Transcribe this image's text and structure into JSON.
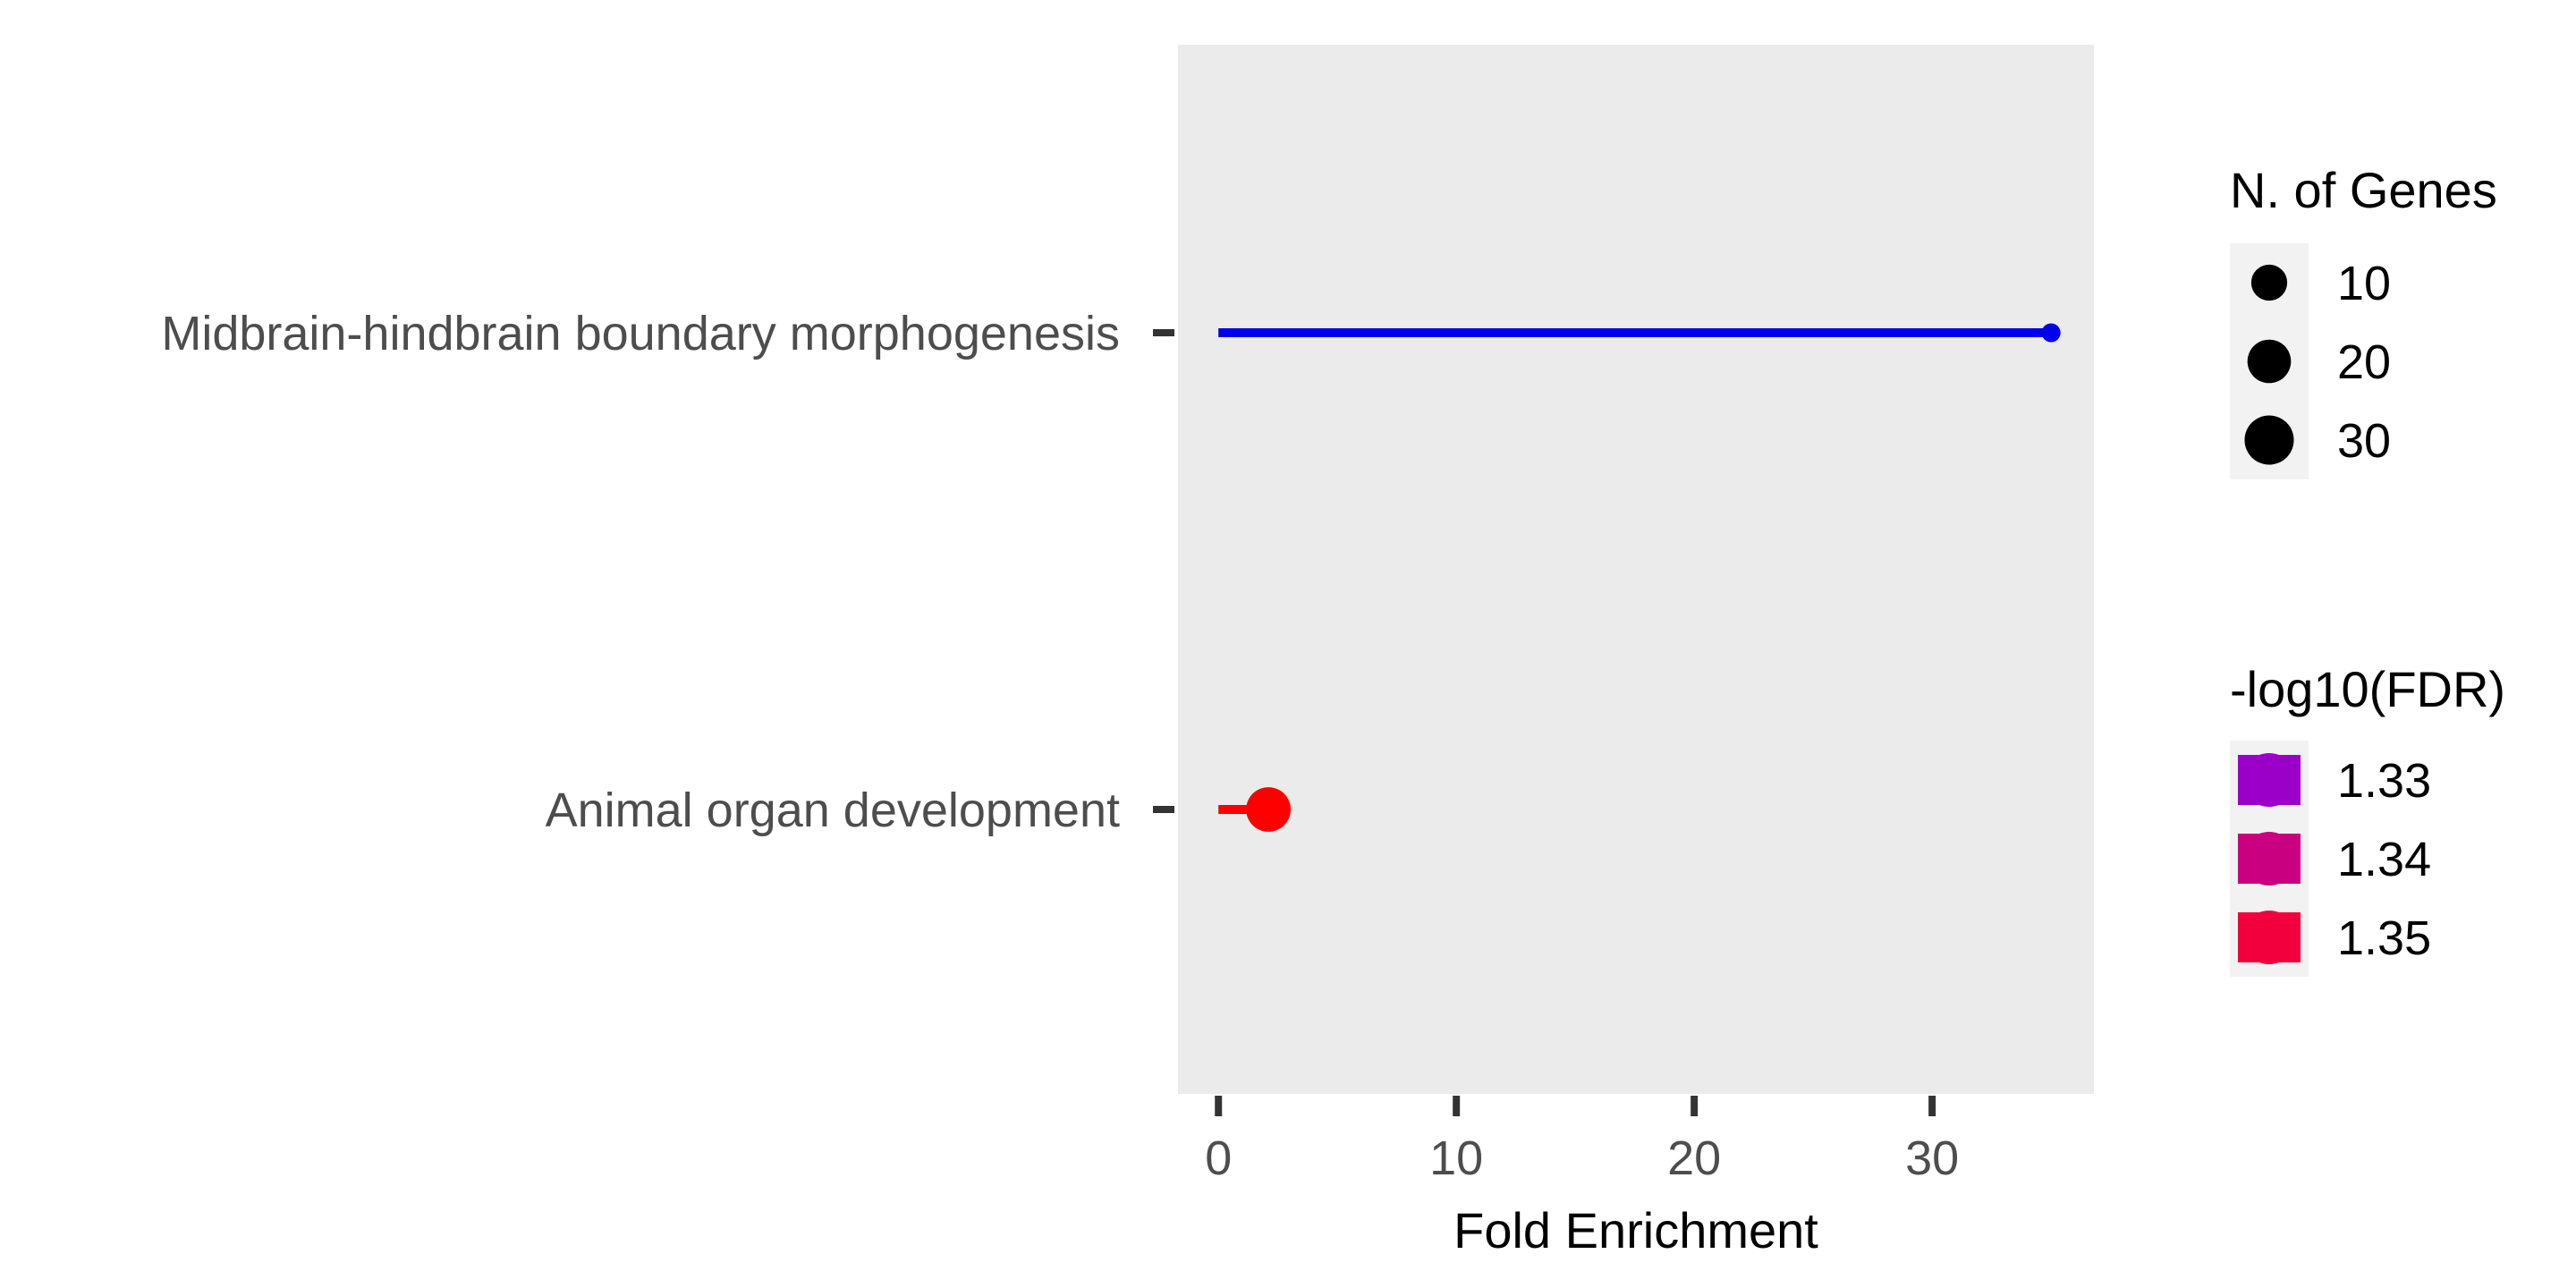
{
  "chart_data": {
    "type": "lollipop",
    "xlabel": "Fold Enrichment",
    "xlim": [
      -1.7,
      36.8
    ],
    "xticks": [
      0,
      10,
      20,
      30
    ],
    "grid": false,
    "legend_position": "right",
    "categories": [
      "Midbrain-hindbrain boundary morphogenesis",
      "Animal organ development"
    ],
    "points": [
      {
        "category": "Midbrain-hindbrain boundary morphogenesis",
        "fold_enrichment": 35,
        "n_genes": 2,
        "neg_log10_fdr": 1.33,
        "color": "#0000ee"
      },
      {
        "category": "Animal organ development",
        "fold_enrichment": 2.1,
        "n_genes": 35,
        "neg_log10_fdr": 1.35,
        "color": "#ff0000"
      }
    ],
    "size_legend": {
      "title": "N. of Genes",
      "items": [
        {
          "label": "10",
          "value": 10
        },
        {
          "label": "20",
          "value": 20
        },
        {
          "label": "30",
          "value": 30
        }
      ]
    },
    "color_legend": {
      "title": "-log10(FDR)",
      "items": [
        {
          "label": "1.33",
          "color": "#9a00c8"
        },
        {
          "label": "1.34",
          "color": "#c9007f"
        },
        {
          "label": "1.35",
          "color": "#f2003e"
        }
      ]
    }
  }
}
